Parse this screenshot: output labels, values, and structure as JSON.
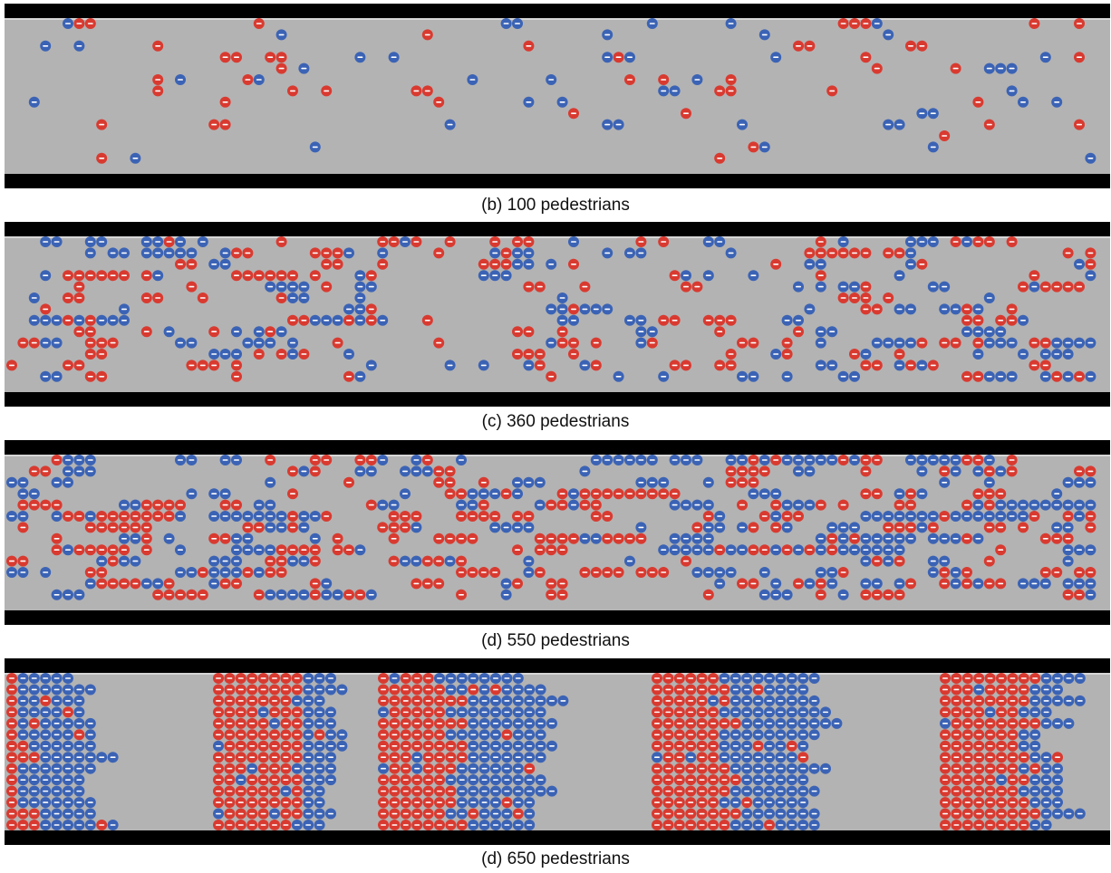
{
  "colors": {
    "wall": "#000000",
    "floor": "#b3b3b3",
    "floor_edge": "#d6d6d6",
    "red_pedestrian": "#d93a30",
    "blue_pedestrian": "#3b63b5",
    "pedestrian_mark": "#ffffff"
  },
  "panels": [
    {
      "caption": "(b) 100 pedestrians",
      "count": 100,
      "pattern": "random-sparse"
    },
    {
      "caption": "(c) 360 pedestrians",
      "count": 360,
      "pattern": "random-medium"
    },
    {
      "caption": "(d) 550 pedestrians",
      "count": 550,
      "pattern": "random-dense-clusters"
    },
    {
      "caption": "(d) 650 pedestrians",
      "count": 650,
      "pattern": "five-jammed-clusters"
    }
  ]
}
